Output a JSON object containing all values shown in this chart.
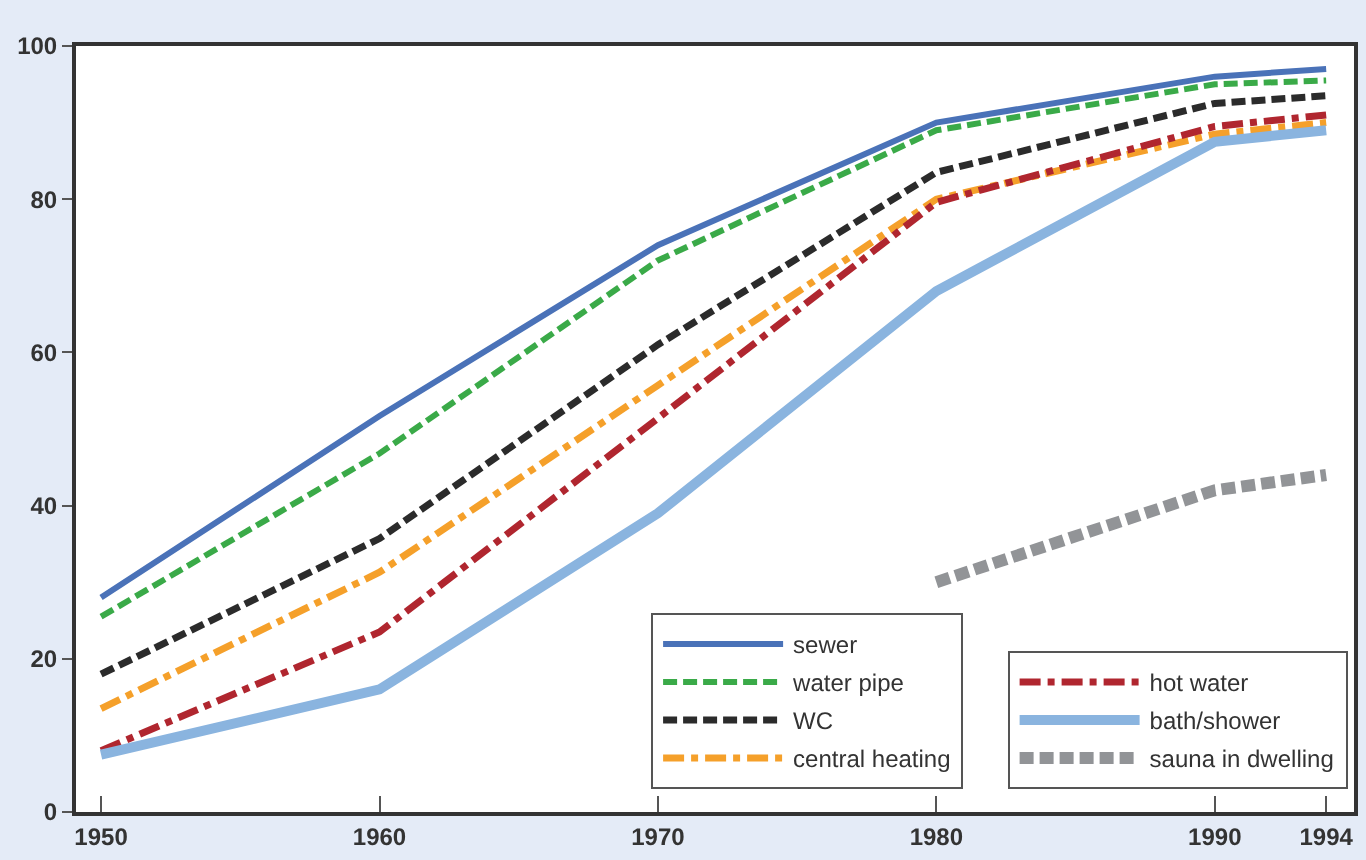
{
  "chart_data": {
    "type": "line",
    "x": [
      1950,
      1960,
      1970,
      1980,
      1990,
      1994
    ],
    "series": [
      {
        "name": "sewer",
        "color": "#4a72b8",
        "line_style": "solid",
        "values": [
          28,
          51.7,
          74,
          90,
          96,
          97
        ]
      },
      {
        "name": "water pipe",
        "color": "#3aaa48",
        "line_style": "dashed",
        "values": [
          25.5,
          46.8,
          72,
          89,
          95,
          95.5
        ]
      },
      {
        "name": "WC",
        "color": "#2b2b2b",
        "line_style": "dashed",
        "values": [
          18,
          35.7,
          61,
          83.5,
          92.5,
          93.5
        ]
      },
      {
        "name": "central heating",
        "color": "#f5a02a",
        "line_style": "dashdot",
        "values": [
          13.5,
          31.3,
          55.7,
          80,
          88.5,
          90
        ]
      },
      {
        "name": "hot water",
        "color": "#b0262f",
        "line_style": "dashdot",
        "values": [
          8,
          23.5,
          51.4,
          79.6,
          89.5,
          91
        ]
      },
      {
        "name": "bath/shower",
        "color": "#8ab4df",
        "line_style": "solid",
        "values": [
          7.5,
          16,
          39,
          68,
          87.5,
          89
        ]
      },
      {
        "name": "sauna in dwelling",
        "color": "#929497",
        "line_style": "dashed",
        "x": [
          1980,
          1990,
          1994
        ],
        "values": [
          30,
          42,
          44
        ]
      }
    ],
    "xlim": [
      1949.1,
      1995
    ],
    "xticks": [
      1950,
      1960,
      1970,
      1980,
      1990,
      1994
    ],
    "ylim": [
      0,
      100
    ],
    "yticks": [
      0,
      20,
      40,
      60,
      80,
      100
    ],
    "legend": "bottom right",
    "marker": "none"
  }
}
